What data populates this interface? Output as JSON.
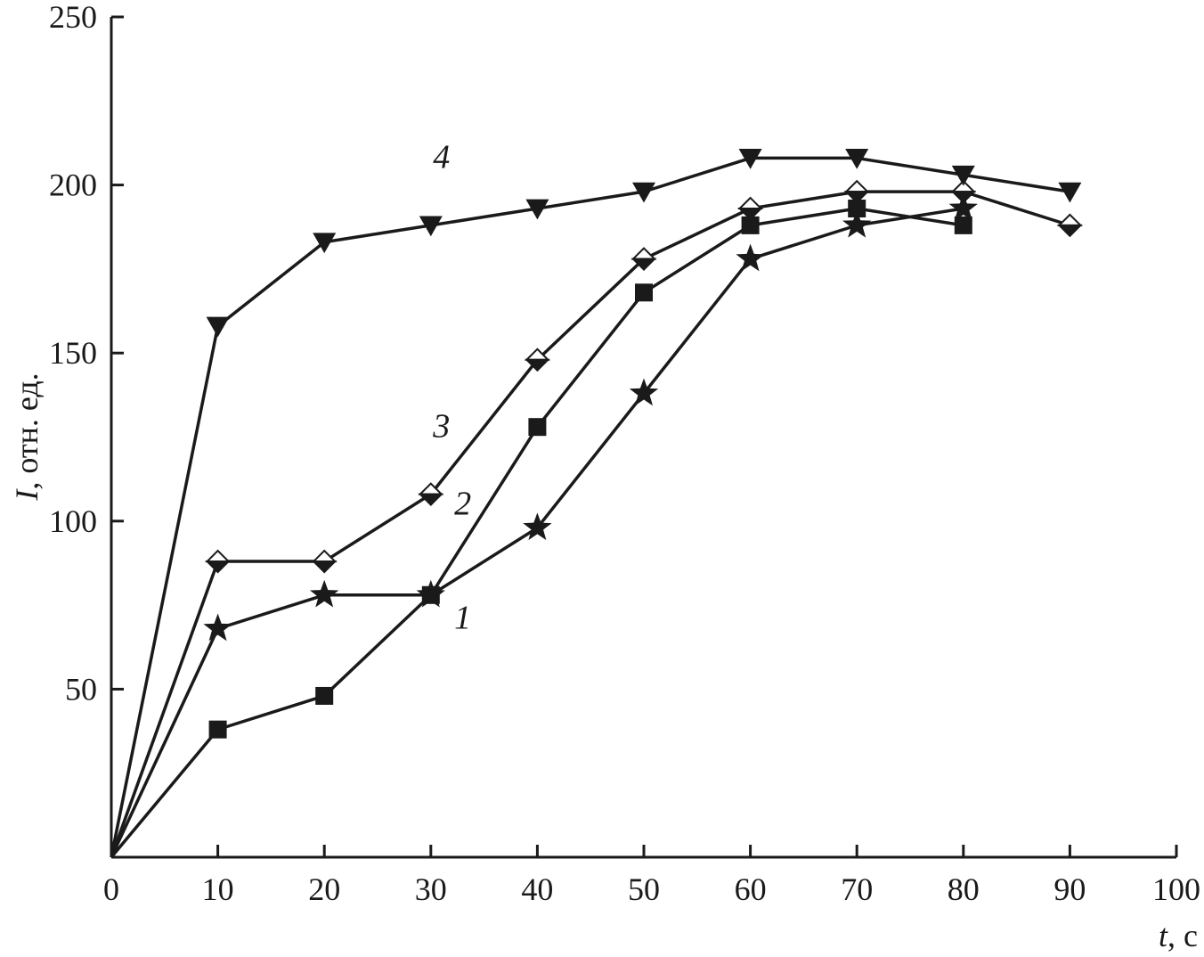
{
  "chart_data": {
    "type": "line",
    "xlabel": {
      "var": "t",
      "unit": ", с"
    },
    "ylabel": {
      "var": "I",
      "unit": ", отн. ед."
    },
    "xlim": [
      0,
      100
    ],
    "ylim": [
      0,
      250
    ],
    "xticks": [
      0,
      10,
      20,
      30,
      40,
      50,
      60,
      70,
      80,
      90,
      100
    ],
    "yticks": [
      50,
      100,
      150,
      200,
      250
    ],
    "grid": false,
    "series": [
      {
        "name": "1",
        "marker": "star",
        "x": [
          0,
          10,
          20,
          30,
          40,
          50,
          60,
          70,
          80
        ],
        "y": [
          0,
          68,
          78,
          78,
          98,
          138,
          178,
          188,
          193
        ]
      },
      {
        "name": "2",
        "marker": "square",
        "x": [
          0,
          10,
          20,
          30,
          40,
          50,
          60,
          70,
          80
        ],
        "y": [
          0,
          38,
          48,
          78,
          128,
          168,
          188,
          193,
          188
        ]
      },
      {
        "name": "3",
        "marker": "diamond-half",
        "x": [
          0,
          10,
          20,
          30,
          40,
          50,
          60,
          70,
          80,
          90
        ],
        "y": [
          0,
          88,
          88,
          108,
          148,
          178,
          193,
          198,
          198,
          188
        ]
      },
      {
        "name": "4",
        "marker": "triangle-down",
        "x": [
          0,
          10,
          20,
          30,
          40,
          50,
          60,
          70,
          80,
          90
        ],
        "y": [
          0,
          158,
          183,
          188,
          193,
          198,
          208,
          208,
          203,
          198
        ]
      }
    ],
    "annotations": [
      {
        "text": "1",
        "x": 33,
        "y": 68
      },
      {
        "text": "2",
        "x": 33,
        "y": 102
      },
      {
        "text": "3",
        "x": 31,
        "y": 125
      },
      {
        "text": "4",
        "x": 31,
        "y": 205
      }
    ],
    "colors": {
      "ink": "#1a1a1a",
      "background": "#ffffff"
    }
  }
}
